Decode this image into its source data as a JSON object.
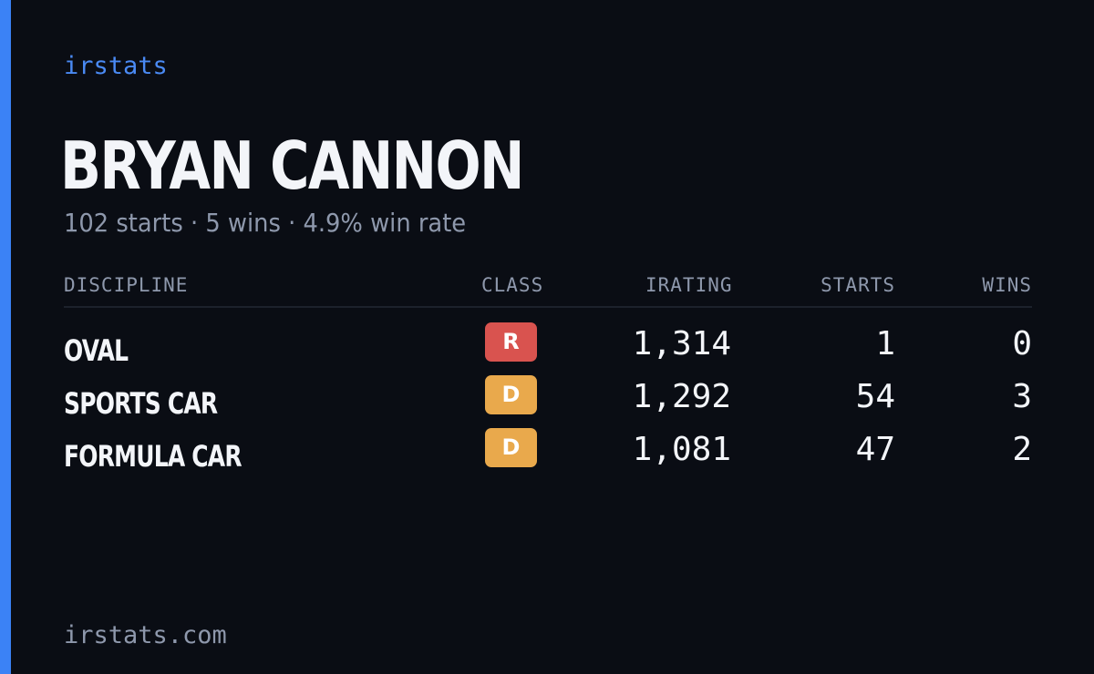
{
  "brand": "irstats",
  "player": {
    "name": "BRYAN CANNON",
    "summary": "102 starts · 5 wins · 4.9% win rate"
  },
  "table": {
    "headers": {
      "discipline": "DISCIPLINE",
      "class": "CLASS",
      "irating": "IRATING",
      "starts": "STARTS",
      "wins": "WINS"
    },
    "rows": [
      {
        "discipline": "OVAL",
        "class": "R",
        "class_color": "#d9534f",
        "irating": "1,314",
        "starts": "1",
        "wins": "0"
      },
      {
        "discipline": "SPORTS CAR",
        "class": "D",
        "class_color": "#e9a94c",
        "irating": "1,292",
        "starts": "54",
        "wins": "3"
      },
      {
        "discipline": "FORMULA CAR",
        "class": "D",
        "class_color": "#e9a94c",
        "irating": "1,081",
        "starts": "47",
        "wins": "2"
      }
    ]
  },
  "footer": "irstats.com",
  "colors": {
    "background": "#0a0d14",
    "accent": "#3b82f6",
    "text": "#f3f5f9",
    "muted": "#8e98ac"
  }
}
